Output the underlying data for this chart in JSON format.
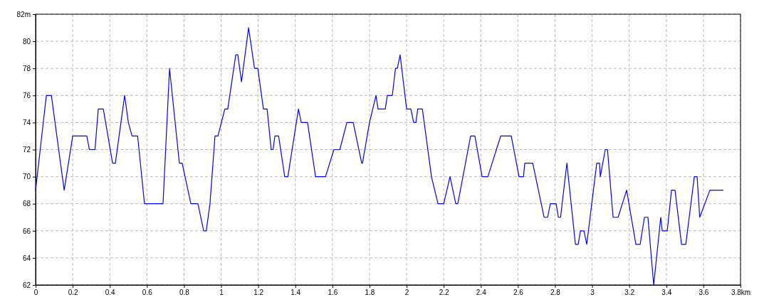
{
  "chart_data": {
    "type": "line",
    "xlim": [
      0,
      3.8
    ],
    "ylim": [
      62,
      82
    ],
    "xticks": [
      0,
      0.2,
      0.4,
      0.6,
      0.8,
      1,
      1.2,
      1.4,
      1.6,
      1.8,
      2,
      2.2,
      2.4,
      2.6,
      2.8,
      3,
      3.2,
      3.4,
      3.6,
      {
        "value": 3.8,
        "label": "3.8km"
      }
    ],
    "yticks": [
      62,
      64,
      66,
      68,
      70,
      72,
      74,
      76,
      78,
      80,
      {
        "value": 82,
        "label": "82m"
      }
    ],
    "grid": true,
    "line_style": "dashed",
    "marker": "none",
    "series": [
      {
        "color": "#0000ff",
        "line_style": "solid",
        "x": [
          0,
          0.058,
          0.085,
          0.154,
          0.2,
          0.276,
          0.29,
          0.32,
          0.338,
          0.365,
          0.415,
          0.43,
          0.48,
          0.5,
          0.52,
          0.55,
          0.587,
          0.687,
          0.722,
          0.775,
          0.79,
          0.837,
          0.875,
          0.906,
          0.92,
          0.94,
          0.967,
          0.983,
          1.02,
          1.036,
          1.079,
          1.09,
          1.11,
          1.148,
          1.18,
          1.198,
          1.228,
          1.248,
          1.27,
          1.28,
          1.29,
          1.31,
          1.343,
          1.36,
          1.417,
          1.432,
          1.466,
          1.509,
          1.563,
          1.608,
          1.64,
          1.678,
          1.712,
          1.758,
          1.762,
          1.8,
          1.835,
          1.846,
          1.885,
          1.896,
          1.923,
          1.94,
          1.95,
          1.965,
          2.0,
          2.023,
          2.038,
          2.05,
          2.06,
          2.085,
          2.134,
          2.169,
          2.2,
          2.234,
          2.265,
          2.276,
          2.345,
          2.368,
          2.407,
          2.438,
          2.507,
          2.564,
          2.606,
          2.63,
          2.637,
          2.68,
          2.741,
          2.76,
          2.775,
          2.806,
          2.818,
          2.83,
          2.864,
          2.91,
          2.925,
          2.937,
          2.956,
          2.971,
          3.025,
          3.04,
          3.044,
          3.071,
          3.083,
          3.113,
          3.14,
          3.186,
          3.236,
          3.259,
          3.282,
          3.301,
          3.332,
          3.37,
          3.378,
          3.405,
          3.428,
          3.447,
          3.482,
          3.505,
          3.551,
          3.566,
          3.58,
          3.635,
          3.708
        ],
        "values": [
          69,
          76,
          76,
          69,
          73,
          73,
          72,
          72,
          75,
          75,
          71,
          71,
          76,
          74,
          73,
          73,
          68,
          68,
          78,
          71,
          71,
          68,
          68,
          66,
          66,
          68,
          73,
          73,
          75,
          75,
          79,
          79,
          77,
          81,
          78,
          78,
          75,
          75,
          72,
          72,
          73,
          73,
          70,
          70,
          75,
          74,
          74,
          70,
          70,
          72,
          72,
          74,
          74,
          71,
          71,
          74,
          76,
          75,
          75,
          76,
          76,
          78,
          78,
          79,
          75,
          75,
          74,
          74,
          75,
          75,
          70,
          68,
          68,
          70,
          68,
          68,
          73,
          73,
          70,
          70,
          73,
          73,
          70,
          70,
          71,
          71,
          67,
          67,
          68,
          68,
          67,
          67,
          71,
          65,
          65,
          66,
          66,
          65,
          71,
          71,
          70,
          72,
          72,
          67,
          67,
          69,
          65,
          65,
          67,
          67,
          62,
          67,
          66,
          66,
          69,
          69,
          65,
          65,
          70,
          70,
          67,
          69,
          69
        ]
      }
    ]
  }
}
